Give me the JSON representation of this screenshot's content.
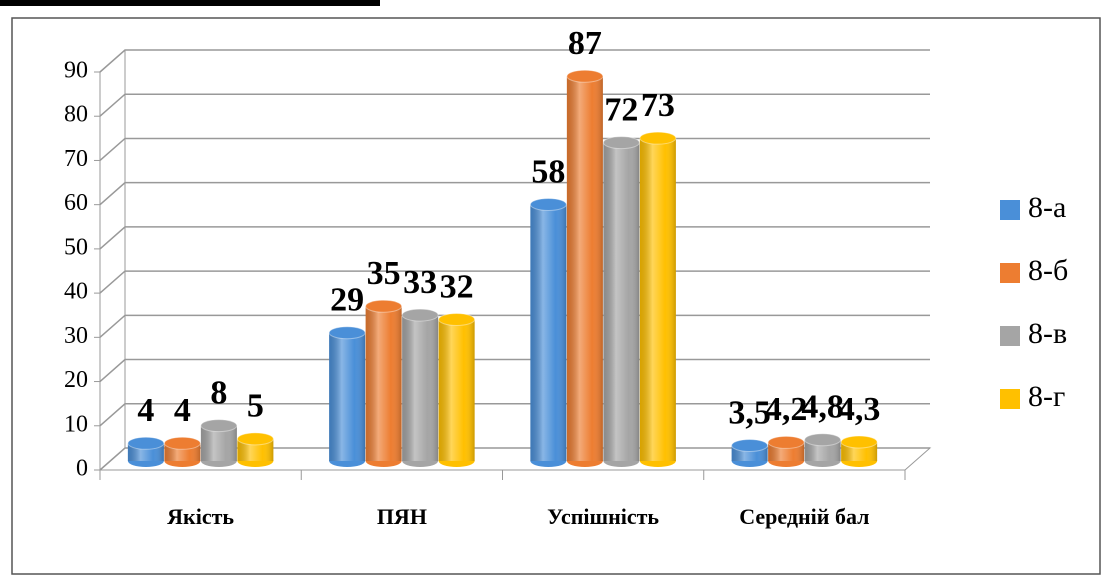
{
  "chart_data": {
    "type": "bar3d",
    "categories": [
      "Якість",
      "ПЯН",
      "Успішність",
      "Середній бал"
    ],
    "series": [
      {
        "name": "8-а",
        "color": "#4a8fd8",
        "values": [
          4,
          29,
          58,
          3.5
        ],
        "value_labels": [
          "4",
          "29",
          "58",
          "3,5"
        ]
      },
      {
        "name": "8-б",
        "color": "#ed7d31",
        "values": [
          4,
          35,
          87,
          4.2
        ],
        "value_labels": [
          "4",
          "35",
          "87",
          "4,2"
        ]
      },
      {
        "name": "8-в",
        "color": "#a5a5a5",
        "values": [
          8,
          33,
          72,
          4.8
        ],
        "value_labels": [
          "8",
          "33",
          "72",
          "4,8"
        ]
      },
      {
        "name": "8-г",
        "color": "#ffc000",
        "values": [
          5,
          32,
          73,
          4.3
        ],
        "value_labels": [
          "5",
          "32",
          "73",
          "4,3"
        ]
      }
    ],
    "ylim": [
      0,
      90
    ],
    "yticks": [
      0,
      10,
      20,
      30,
      40,
      50,
      60,
      70,
      80,
      90
    ],
    "grid": true,
    "legend": "right"
  }
}
